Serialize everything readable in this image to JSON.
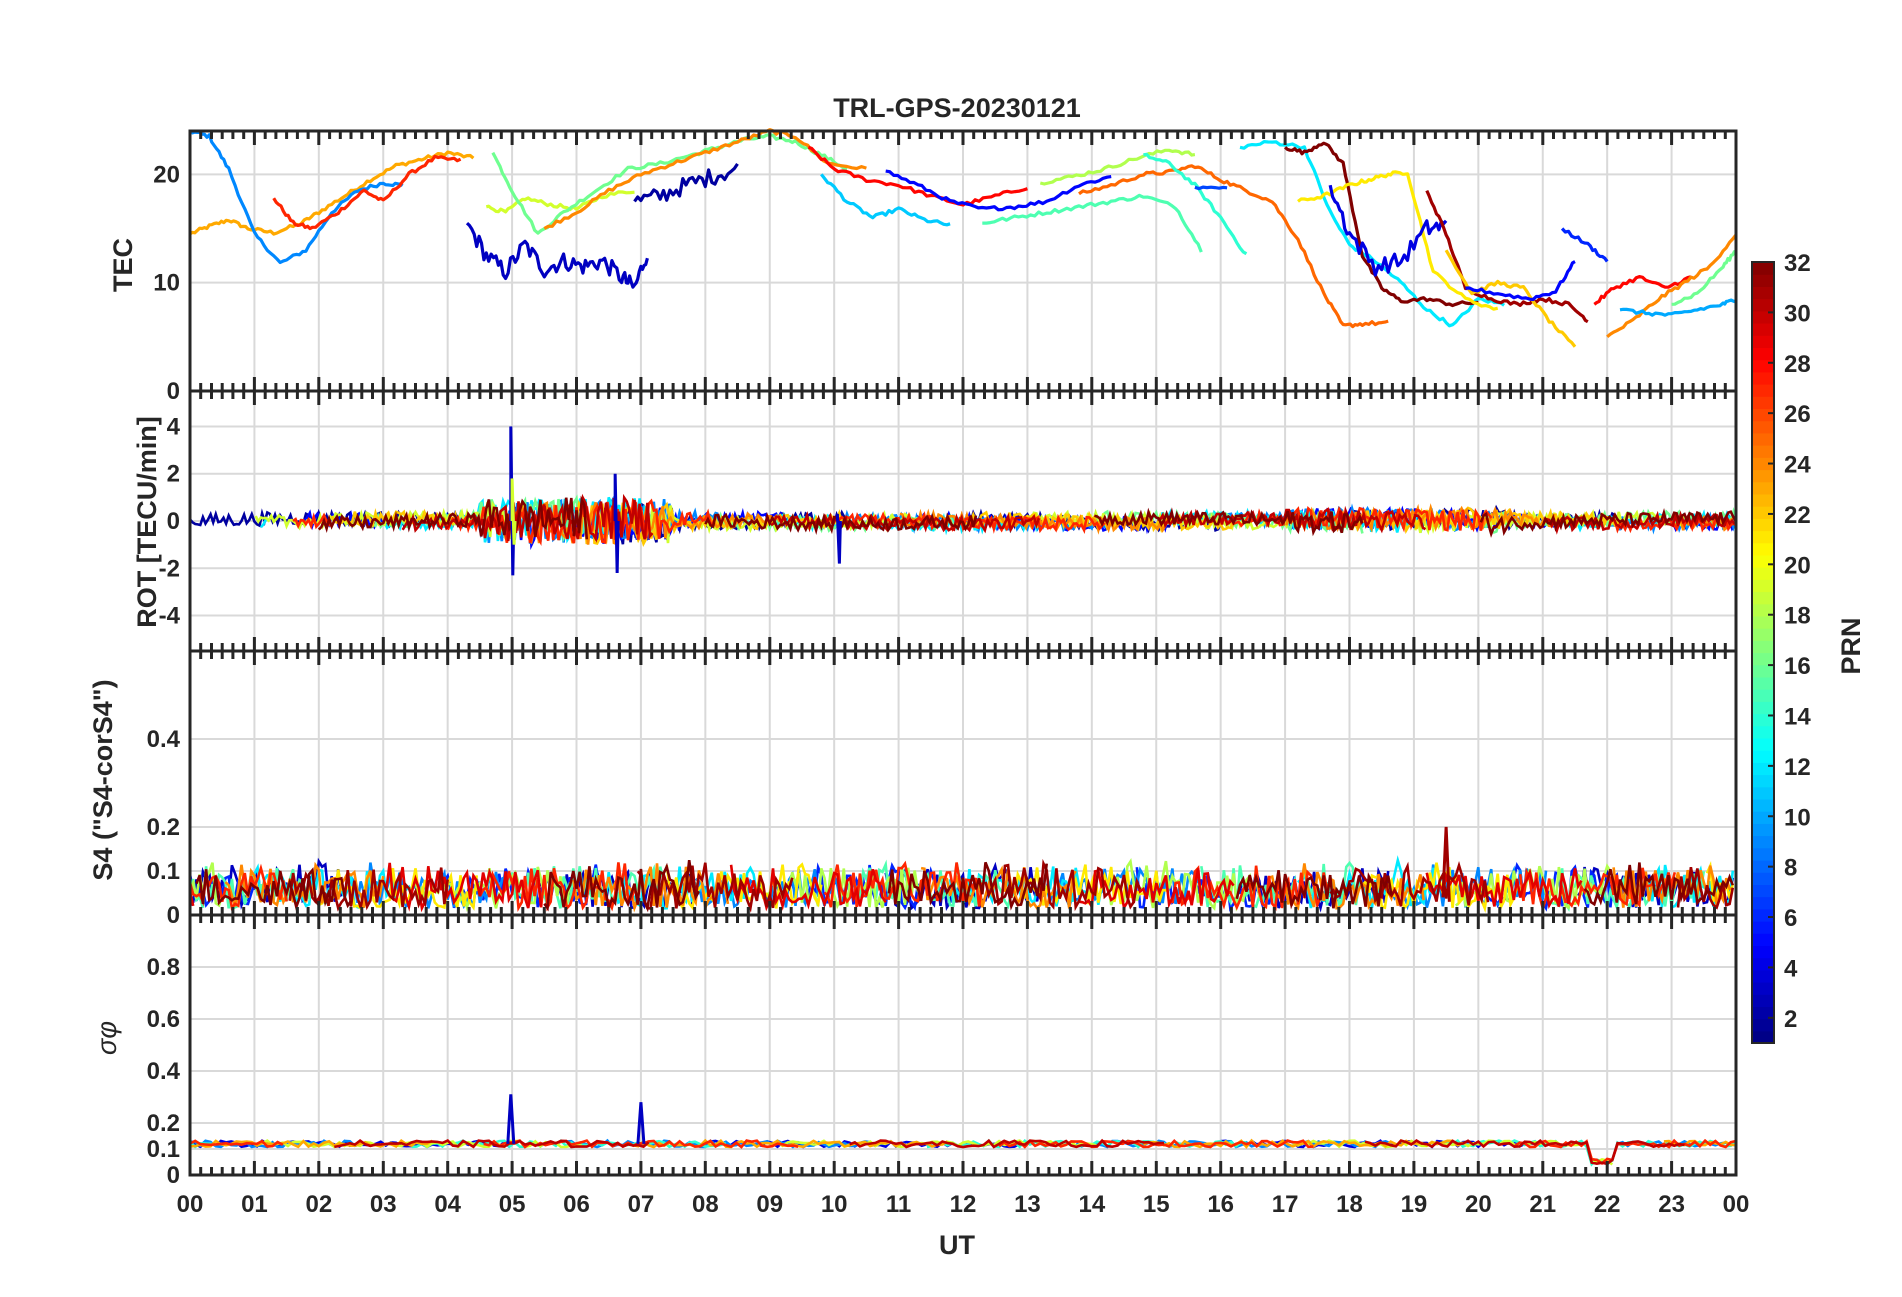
{
  "chart_data": {
    "type": "line",
    "title": "TRL-GPS-20230121",
    "xlabel": "UT",
    "xlim": [
      0,
      24
    ],
    "x_tick_labels": [
      "00",
      "01",
      "02",
      "03",
      "04",
      "05",
      "06",
      "07",
      "08",
      "09",
      "10",
      "11",
      "12",
      "13",
      "14",
      "15",
      "16",
      "17",
      "18",
      "19",
      "20",
      "21",
      "22",
      "23",
      "00"
    ],
    "colorbar": {
      "label": "PRN",
      "range": [
        1,
        32
      ],
      "tick_labels": [
        "2",
        "4",
        "6",
        "8",
        "10",
        "12",
        "14",
        "16",
        "18",
        "20",
        "22",
        "24",
        "26",
        "28",
        "30",
        "32"
      ],
      "colormap": "jet"
    },
    "panels": [
      {
        "name": "tec",
        "ylabel": "TEC",
        "ylim": [
          0,
          24
        ],
        "y_ticks": [
          0,
          10,
          20
        ],
        "series": [
          {
            "prn": 23,
            "x": [
              0,
              0.3,
              0.6,
              0.9,
              1.3,
              1.7,
              2.0,
              2.4,
              2.8,
              3.2,
              3.6,
              4.0,
              4.4
            ],
            "y": [
              14.5,
              15.2,
              15.8,
              15.0,
              14.6,
              15.4,
              16.5,
              18.0,
              19.5,
              20.8,
              21.4,
              22.0,
              21.5
            ]
          },
          {
            "prn": 9,
            "x": [
              0,
              0.3,
              0.6,
              1.0,
              1.4,
              1.8,
              2.2,
              2.6,
              3.0,
              3.3
            ],
            "y": [
              24.0,
              23.5,
              20.5,
              14.5,
              11.8,
              13.0,
              16.5,
              18.5,
              19.2,
              19.0
            ]
          },
          {
            "prn": 27,
            "x": [
              1.3,
              1.6,
              1.9,
              2.3,
              2.7,
              3.0,
              3.4,
              3.8,
              4.2
            ],
            "y": [
              17.8,
              15.5,
              15.0,
              16.5,
              18.5,
              17.5,
              20.0,
              21.5,
              21.3
            ]
          },
          {
            "prn": 3,
            "x": [
              4.3,
              4.6,
              4.9,
              5.2,
              5.5,
              5.8,
              6.1,
              6.4,
              6.7,
              6.9,
              7.1
            ],
            "y": [
              15.5,
              12.5,
              11.0,
              13.5,
              11.2,
              12.0,
              11.5,
              12.0,
              10.5,
              9.5,
              12.8
            ]
          },
          {
            "prn": 19,
            "x": [
              4.6,
              4.9,
              5.2,
              5.6,
              6.0,
              6.4,
              6.9
            ],
            "y": [
              17.0,
              16.5,
              17.8,
              17.2,
              16.8,
              18.0,
              18.5
            ]
          },
          {
            "prn": 16,
            "x": [
              4.7,
              5.0,
              5.4,
              5.8,
              6.3,
              6.8,
              7.3,
              7.8,
              8.2,
              8.6,
              9.0,
              9.4,
              9.8,
              10.2
            ],
            "y": [
              22.0,
              18.5,
              14.5,
              16.5,
              18.5,
              20.5,
              21.0,
              21.8,
              22.5,
              23.2,
              23.5,
              23.0,
              21.8,
              20.5
            ]
          },
          {
            "prn": 2,
            "x": [
              6.9,
              7.3,
              7.7,
              8.1,
              8.5
            ],
            "y": [
              17.5,
              18.0,
              19.0,
              19.8,
              20.5
            ]
          },
          {
            "prn": 24,
            "x": [
              5.5,
              6.0,
              6.5,
              7.0,
              7.5,
              8.0,
              8.5,
              9.0,
              9.4,
              9.9,
              10.5
            ],
            "y": [
              15.0,
              16.5,
              18.5,
              20.0,
              21.0,
              22.0,
              23.0,
              24.0,
              23.5,
              21.0,
              20.5
            ]
          },
          {
            "prn": 11,
            "x": [
              9.8,
              10.2,
              10.6,
              11.0,
              11.4,
              11.8
            ],
            "y": [
              20.0,
              17.5,
              16.0,
              16.8,
              15.8,
              15.3
            ]
          },
          {
            "prn": 28,
            "x": [
              9.6,
              10.0,
              10.5,
              11.0,
              11.5,
              12.0,
              12.5,
              13.0
            ],
            "y": [
              22.5,
              20.5,
              19.5,
              19.0,
              18.0,
              17.2,
              18.0,
              18.8
            ]
          },
          {
            "prn": 5,
            "x": [
              10.8,
              11.3,
              11.8,
              12.3,
              12.8,
              13.3,
              13.8,
              14.3
            ],
            "y": [
              20.3,
              19.0,
              17.5,
              16.8,
              17.0,
              17.5,
              19.0,
              19.8
            ]
          },
          {
            "prn": 15,
            "x": [
              12.3,
              12.8,
              13.3,
              13.8,
              14.3,
              14.8,
              15.3,
              15.7
            ],
            "y": [
              15.5,
              16.0,
              16.5,
              17.0,
              17.5,
              18.0,
              17.0,
              13.0
            ]
          },
          {
            "prn": 18,
            "x": [
              13.2,
              13.7,
              14.2,
              14.7,
              15.2,
              15.6
            ],
            "y": [
              19.2,
              19.8,
              20.5,
              21.5,
              22.3,
              21.8
            ]
          },
          {
            "prn": 25,
            "x": [
              13.8,
              14.3,
              14.8,
              15.2,
              15.6,
              16.0,
              16.4,
              16.8,
              17.2,
              17.6,
              17.9,
              18.2,
              18.6
            ],
            "y": [
              18.2,
              19.0,
              20.0,
              20.2,
              20.8,
              19.5,
              18.5,
              17.5,
              14.0,
              9.0,
              6.0,
              6.2,
              6.3
            ]
          },
          {
            "prn": 14,
            "x": [
              14.8,
              15.2,
              15.6,
              16.0,
              16.4
            ],
            "y": [
              21.8,
              21.0,
              19.0,
              16.0,
              12.5
            ]
          },
          {
            "prn": 7,
            "x": [
              15.6,
              16.1
            ],
            "y": [
              18.8,
              18.7
            ]
          },
          {
            "prn": 12,
            "x": [
              16.3,
              16.8,
              17.3,
              17.7,
              18.0,
              18.4,
              18.8,
              19.2,
              19.6,
              20.0,
              20.4
            ],
            "y": [
              22.5,
              23.0,
              22.5,
              16.5,
              13.5,
              12.0,
              10.0,
              7.5,
              6.0,
              8.5,
              8.0
            ]
          },
          {
            "prn": 32,
            "x": [
              17.0,
              17.3,
              17.6,
              17.9,
              18.2,
              18.5,
              18.8,
              19.2,
              19.6,
              20.0
            ],
            "y": [
              22.5,
              22.0,
              23.0,
              21.0,
              12.5,
              9.5,
              8.3,
              8.5,
              8.0,
              8.2
            ]
          },
          {
            "prn": 21,
            "x": [
              17.2,
              17.6,
              18.0,
              18.3,
              18.6,
              18.9,
              19.3,
              19.8,
              20.3
            ],
            "y": [
              17.5,
              18.0,
              19.0,
              19.5,
              20.0,
              20.2,
              11.0,
              8.5,
              7.5
            ]
          },
          {
            "prn": 4,
            "x": [
              17.7,
              18.0,
              18.4,
              18.8,
              19.2,
              19.5
            ],
            "y": [
              19.0,
              14.5,
              11.5,
              12.0,
              15.0,
              15.3
            ]
          },
          {
            "prn": 31,
            "x": [
              19.2,
              19.5,
              19.8,
              20.2,
              20.6,
              21.0,
              21.4,
              21.7
            ],
            "y": [
              18.5,
              14.5,
              9.5,
              8.5,
              8.0,
              8.5,
              8.0,
              6.5
            ]
          },
          {
            "prn": 22,
            "x": [
              19.5,
              19.9,
              20.3,
              20.7,
              21.1,
              21.5
            ],
            "y": [
              13.0,
              9.0,
              10.0,
              9.5,
              6.5,
              4.0
            ]
          },
          {
            "prn": 5,
            "x": [
              19.8,
              20.3,
              20.8,
              21.2,
              21.5
            ],
            "y": [
              9.5,
              9.0,
              8.5,
              9.2,
              12.0
            ]
          },
          {
            "prn": 6,
            "x": [
              21.3,
              21.7,
              22.0
            ],
            "y": [
              15.0,
              13.5,
              12.0
            ]
          },
          {
            "prn": 28,
            "x": [
              21.8,
              22.1,
              22.5,
              22.9,
              23.3
            ],
            "y": [
              8.0,
              9.5,
              10.5,
              9.5,
              10.5
            ]
          },
          {
            "prn": 24,
            "x": [
              22.0,
              22.4,
              22.8,
              23.2,
              23.6,
              24.0
            ],
            "y": [
              5.0,
              6.5,
              8.5,
              10.0,
              11.5,
              14.5
            ]
          },
          {
            "prn": 10,
            "x": [
              22.2,
              22.6,
              23.0,
              23.4,
              23.8,
              24.0
            ],
            "y": [
              7.5,
              7.2,
              7.0,
              7.5,
              8.0,
              8.5
            ]
          },
          {
            "prn": 16,
            "x": [
              23.0,
              23.4,
              23.8,
              24.0
            ],
            "y": [
              8.0,
              9.0,
              11.5,
              13.0
            ]
          }
        ]
      },
      {
        "name": "rot",
        "ylabel": "ROT [TECU/min]",
        "ylim": [
          -5.5,
          5.5
        ],
        "y_ticks": [
          -4,
          -2,
          0,
          2,
          4
        ],
        "spikes": [
          {
            "prn": 3,
            "x": 4.98,
            "min": -2.3,
            "max": 4.0
          },
          {
            "prn": 19,
            "x": 5.0,
            "min": -1.0,
            "max": 1.8
          },
          {
            "prn": 3,
            "x": 6.6,
            "min": -2.2,
            "max": 2.0
          },
          {
            "prn": 3,
            "x": 10.05,
            "min": -1.8,
            "max": 0.3
          }
        ]
      },
      {
        "name": "s4",
        "ylabel": "S4 (\"S4-corS4\")",
        "ylim": [
          0,
          0.6
        ],
        "y_ticks": [
          0,
          0.1,
          0.2,
          0.4
        ],
        "peak": {
          "x": 19.5,
          "value": 0.2
        }
      },
      {
        "name": "sigma_phi",
        "ylabel": "σφ",
        "ylim": [
          0,
          1
        ],
        "y_ticks": [
          0,
          0.1,
          0.2,
          0.4,
          0.6,
          0.8
        ],
        "baseline": 0.12,
        "spikes": [
          {
            "prn": 3,
            "x": 4.98,
            "max": 0.31
          },
          {
            "prn": 3,
            "x": 7.0,
            "max": 0.28
          }
        ]
      }
    ]
  }
}
